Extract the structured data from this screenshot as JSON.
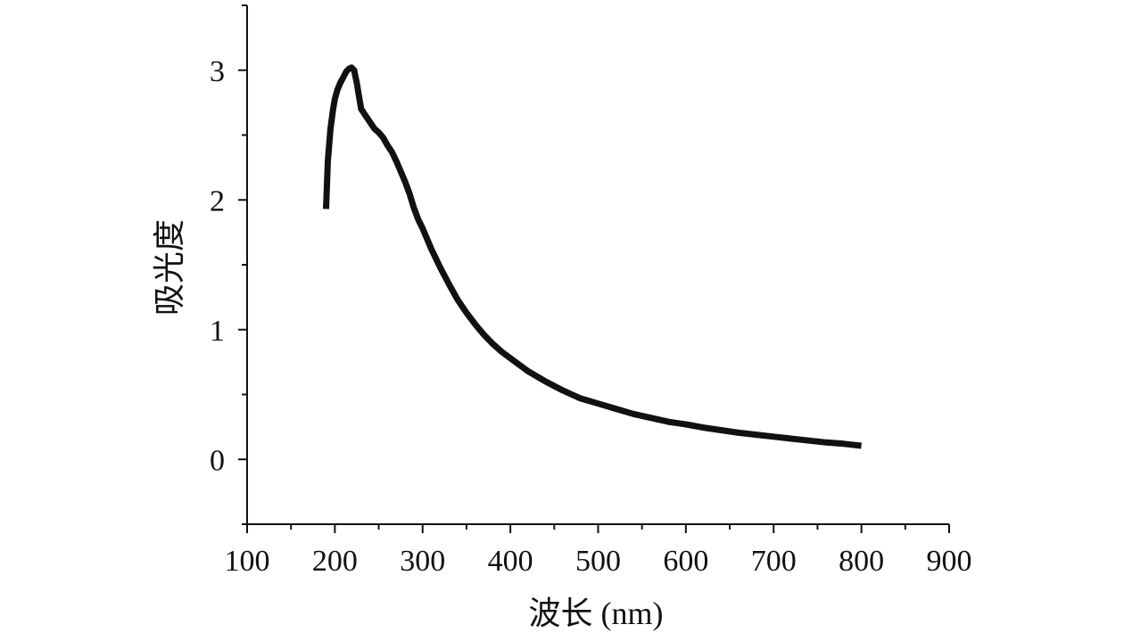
{
  "chart_data": {
    "type": "line",
    "title": "",
    "xlabel": "波长 (nm)",
    "ylabel": "吸光度",
    "xlim": [
      100,
      900
    ],
    "ylim": [
      -0.5,
      3.5
    ],
    "xticks": [
      100,
      200,
      300,
      400,
      500,
      600,
      700,
      800,
      900
    ],
    "yticks": [
      0,
      1,
      2,
      3
    ],
    "grid": false,
    "line_color": "#111111",
    "series": [
      {
        "x": [
          190,
          192,
          195,
          198,
          200,
          203,
          206,
          210,
          213,
          216,
          219,
          222,
          225,
          228,
          230,
          232,
          235,
          240,
          245,
          250,
          255,
          260,
          265,
          270,
          275,
          280,
          285,
          290,
          295,
          300,
          310,
          320,
          330,
          340,
          350,
          360,
          370,
          380,
          390,
          400,
          420,
          440,
          460,
          480,
          500,
          520,
          540,
          560,
          580,
          600,
          620,
          640,
          660,
          680,
          700,
          720,
          740,
          760,
          780,
          800
        ],
        "y": [
          1.93,
          2.3,
          2.55,
          2.7,
          2.78,
          2.85,
          2.9,
          2.95,
          2.99,
          3.01,
          3.02,
          3.0,
          2.9,
          2.78,
          2.7,
          2.68,
          2.65,
          2.6,
          2.55,
          2.52,
          2.48,
          2.42,
          2.37,
          2.3,
          2.22,
          2.14,
          2.05,
          1.94,
          1.85,
          1.78,
          1.62,
          1.48,
          1.35,
          1.23,
          1.13,
          1.04,
          0.96,
          0.89,
          0.83,
          0.78,
          0.68,
          0.6,
          0.53,
          0.47,
          0.43,
          0.39,
          0.35,
          0.32,
          0.29,
          0.27,
          0.245,
          0.225,
          0.205,
          0.19,
          0.175,
          0.16,
          0.145,
          0.13,
          0.12,
          0.105
        ]
      }
    ]
  }
}
